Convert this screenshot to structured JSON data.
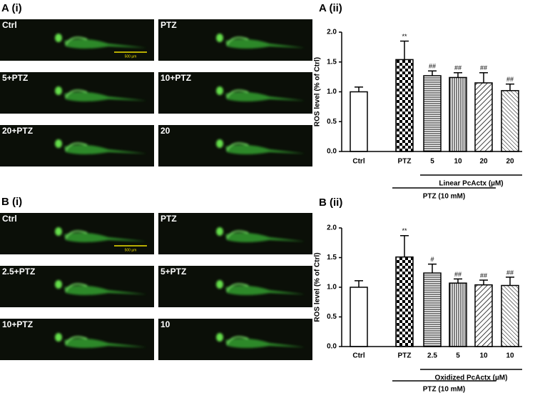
{
  "panels": [
    {
      "label": "A (i)",
      "images": [
        "Ctrl",
        "PTZ",
        "5+PTZ",
        "10+PTZ",
        "20+PTZ",
        "20"
      ],
      "scale_bar": "500 µm"
    },
    {
      "label": "B (i)",
      "images": [
        "Ctrl",
        "PTZ",
        "2.5+PTZ",
        "5+PTZ",
        "10+PTZ",
        "10"
      ],
      "scale_bar": "500 µm"
    }
  ],
  "chart_data": [
    {
      "type": "bar",
      "panel_label": "A (ii)",
      "y_label": "ROS level (% of Ctrl)",
      "categories": [
        "Ctrl",
        "PTZ",
        "5",
        "10",
        "20",
        "20"
      ],
      "values": [
        1.0,
        1.54,
        1.27,
        1.24,
        1.15,
        1.02
      ],
      "errors": [
        0.08,
        0.31,
        0.08,
        0.08,
        0.17,
        0.11
      ],
      "annotations": [
        null,
        "**",
        "##",
        "##",
        "##",
        "##"
      ],
      "patterns": [
        "none",
        "checker",
        "horizontal",
        "vertical",
        "diag-up",
        "diag-down"
      ],
      "brackets": [
        {
          "label": "Linear PcActx (µM)",
          "from": 2,
          "to": 5
        },
        {
          "label": "PTZ (10 mM)",
          "from": 1,
          "to": 4
        }
      ],
      "ylim": [
        0,
        2.0
      ],
      "yticks": [
        {
          "value": 0,
          "label": "0.0"
        },
        {
          "value": 0.5,
          "label": "0.5"
        },
        {
          "value": 1.0,
          "label": "1.0"
        },
        {
          "value": 1.5,
          "label": "1.5"
        },
        {
          "value": 2.0,
          "label": "2.0"
        }
      ]
    },
    {
      "type": "bar",
      "panel_label": "B (ii)",
      "y_label": "ROS level (% of Ctrl)",
      "categories": [
        "Ctrl",
        "PTZ",
        "2.5",
        "5",
        "10",
        "10"
      ],
      "values": [
        1.0,
        1.51,
        1.24,
        1.07,
        1.04,
        1.03
      ],
      "errors": [
        0.11,
        0.36,
        0.15,
        0.07,
        0.08,
        0.14
      ],
      "annotations": [
        null,
        "**",
        "#",
        "##",
        "##",
        "##"
      ],
      "patterns": [
        "none",
        "checker",
        "horizontal",
        "vertical",
        "diag-up",
        "diag-down"
      ],
      "brackets": [
        {
          "label": "Oxidized PcActx (µM)",
          "from": 2,
          "to": 5
        },
        {
          "label": "PTZ (10 mM)",
          "from": 1,
          "to": 4
        }
      ],
      "ylim": [
        0,
        2.0
      ],
      "yticks": [
        {
          "value": 0,
          "label": "0.0"
        },
        {
          "value": 0.5,
          "label": "0.5"
        },
        {
          "value": 1.0,
          "label": "1.0"
        },
        {
          "value": 1.5,
          "label": "1.5"
        },
        {
          "value": 2.0,
          "label": "2.0"
        }
      ]
    }
  ]
}
